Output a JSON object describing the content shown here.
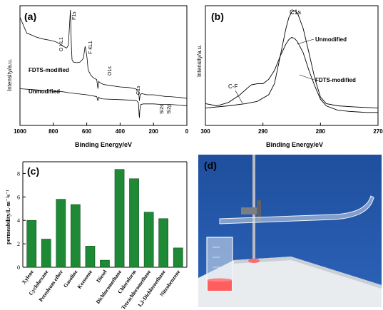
{
  "chart_data": [
    {
      "panel": "(a)",
      "type": "line",
      "xlabel": "Binding Energy/eV",
      "ylabel": "Intensity/a.u.",
      "xlim": [
        1000,
        0
      ],
      "xticks": [
        1000,
        800,
        600,
        400,
        200,
        0
      ],
      "series": [
        {
          "name": "FDTS-modified",
          "x": [
            1000,
            960,
            900,
            860,
            820,
            790,
            760,
            740,
            720,
            710,
            705,
            698,
            692,
            688,
            680,
            660,
            640,
            620,
            610,
            604,
            598,
            592,
            586,
            575,
            560,
            540,
            533,
            528,
            520,
            500,
            450,
            400,
            350,
            310,
            295,
            288,
            284,
            280,
            270,
            240,
            200,
            170,
            150,
            120,
            100,
            60,
            20,
            0
          ],
          "y": [
            148,
            122,
            115,
            112,
            110,
            108,
            104,
            100,
            97,
            102,
            125,
            160,
            100,
            78,
            74,
            73,
            74,
            80,
            100,
            92,
            80,
            62,
            58,
            52,
            48,
            45,
            30,
            42,
            40,
            37,
            35,
            33,
            32,
            30,
            28,
            22,
            10,
            20,
            22,
            20,
            20,
            19,
            18,
            17,
            17,
            16,
            15,
            14
          ]
        },
        {
          "name": "Unmodified",
          "x": [
            1000,
            900,
            800,
            740,
            720,
            700,
            600,
            560,
            540,
            533,
            528,
            520,
            500,
            400,
            320,
            300,
            290,
            286,
            284,
            282,
            276,
            260,
            200,
            150,
            100,
            50,
            0
          ],
          "y": [
            30,
            28,
            26,
            25,
            24,
            23,
            20,
            18,
            17,
            10,
            16,
            14,
            13,
            12,
            11,
            10,
            7,
            -14,
            -18,
            -6,
            4,
            5,
            5,
            4,
            4,
            3,
            2
          ]
        }
      ],
      "annotations": [
        "O KL1",
        "F1s",
        "F KL1",
        "O1s",
        "C1s",
        "Si2s",
        "Si2p"
      ]
    },
    {
      "panel": "(b)",
      "type": "line",
      "xlabel": "Binding Energy/eV",
      "ylabel": "Intensity/a.u.",
      "xlim": [
        300,
        270
      ],
      "xticks": [
        300,
        290,
        280,
        270
      ],
      "series": [
        {
          "name": "Unmodified",
          "x": [
            300,
            296,
            293,
            291,
            289,
            288,
            287,
            286,
            285.5,
            285,
            284.5,
            284,
            283,
            282,
            281,
            280,
            279,
            277,
            274,
            270
          ],
          "y": [
            8,
            10,
            12,
            14,
            20,
            30,
            55,
            80,
            90,
            95,
            96,
            94,
            80,
            58,
            35,
            18,
            12,
            10,
            9,
            8
          ]
        },
        {
          "name": "FDTS-modified",
          "x": [
            300,
            298,
            296,
            294,
            292.5,
            292,
            291,
            290,
            289,
            288,
            287,
            286,
            285.5,
            285,
            284.5,
            284,
            283,
            282,
            281,
            280,
            279,
            277,
            275,
            272,
            270
          ],
          "y": [
            12,
            10,
            13,
            20,
            27,
            29,
            30,
            30,
            34,
            42,
            55,
            66,
            70,
            72,
            71,
            68,
            58,
            42,
            28,
            16,
            10,
            6,
            5,
            4,
            4
          ]
        }
      ],
      "annotations": [
        "C1s",
        "C-F"
      ]
    },
    {
      "panel": "(c)",
      "type": "bar",
      "ylabel": "permeability/L·m⁻²s⁻¹",
      "ylim": [
        0,
        9
      ],
      "yticks": [
        0,
        2,
        4,
        6,
        8
      ],
      "categories": [
        "Xylene",
        "Cyclohexane",
        "Petroleum ether",
        "Gasoline",
        "Kerosene",
        "Diesel",
        "Dichloromethane",
        "Chloroform",
        "Tetrachloromethane",
        "1,2-Dichloroethane",
        "Nitrobenzene"
      ],
      "values": [
        4.0,
        2.4,
        5.8,
        5.35,
        1.8,
        0.6,
        8.35,
        7.55,
        4.7,
        4.15,
        1.65
      ]
    }
  ],
  "photo": {
    "panel": "(d)"
  }
}
